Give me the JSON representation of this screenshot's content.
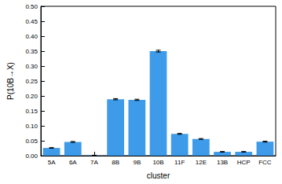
{
  "chart_data": {
    "type": "bar",
    "x_label": "cluster",
    "y_label": "P(10B→X)",
    "categories": [
      "5A",
      "6A",
      "7A",
      "8B",
      "9B",
      "10B",
      "11F",
      "12E",
      "13B",
      "HCP",
      "FCC"
    ],
    "values": [
      0.026,
      0.046,
      0.001,
      0.189,
      0.187,
      0.35,
      0.073,
      0.056,
      0.013,
      0.013,
      0.047
    ],
    "errors": [
      0.001,
      0.0015,
      0.0005,
      0.002,
      0.002,
      0.003,
      0.0015,
      0.0015,
      0.001,
      0.001,
      0.0015
    ],
    "color": "#3d9be9",
    "ylim": [
      0,
      0.5
    ],
    "yticks": [
      {
        "value": 0,
        "label": "0.00"
      },
      {
        "value": 0.05,
        "label": "0.05"
      },
      {
        "value": 0.1,
        "label": "0.10"
      },
      {
        "value": 0.15,
        "label": "0.15"
      },
      {
        "value": 0.2,
        "label": "0.20"
      },
      {
        "value": 0.25,
        "label": "0.25"
      },
      {
        "value": 0.3,
        "label": "0.30"
      },
      {
        "value": 0.35,
        "label": "0.35"
      },
      {
        "value": 0.4,
        "label": "0.40"
      },
      {
        "value": 0.45,
        "label": "0.45"
      },
      {
        "value": 0.5,
        "label": "0.50"
      }
    ],
    "grid": false
  }
}
